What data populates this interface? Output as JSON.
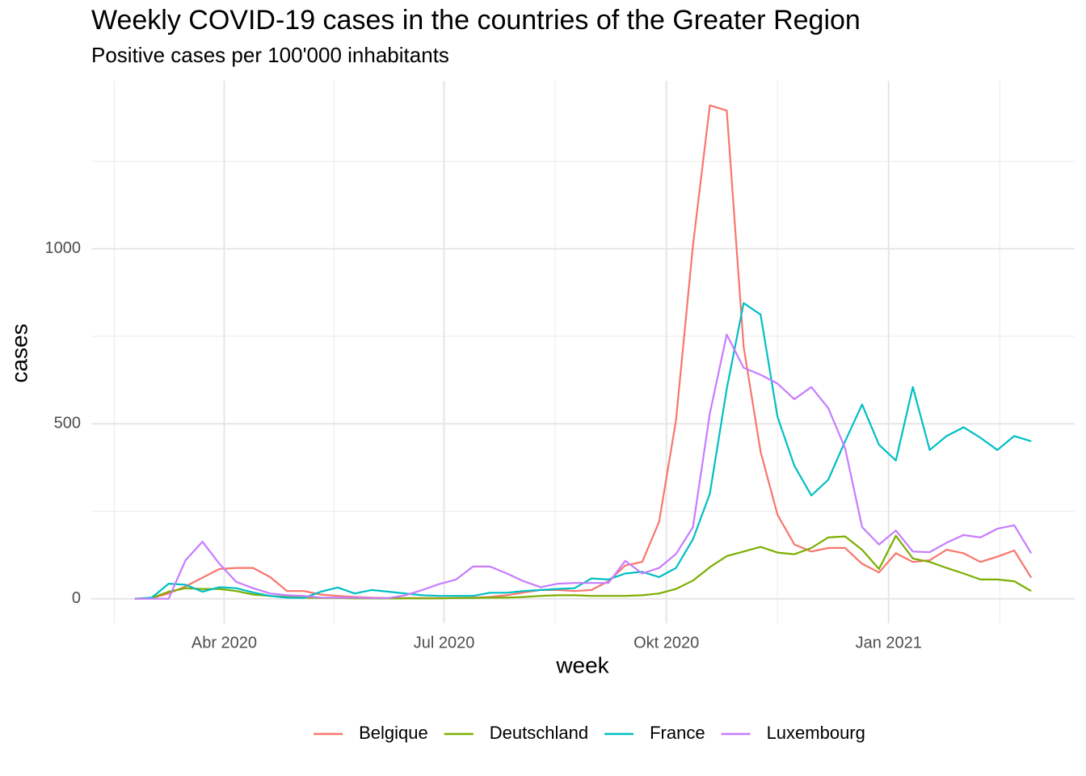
{
  "chart_data": {
    "type": "line",
    "title": "Weekly COVID-19 cases in the countries of the Greater Region",
    "subtitle": "Positive cases per 100'000 inhabitants",
    "x_label": "week",
    "y_label": "cases",
    "x": [
      "2020-02-24",
      "2020-03-02",
      "2020-03-09",
      "2020-03-16",
      "2020-03-23",
      "2020-03-30",
      "2020-04-06",
      "2020-04-13",
      "2020-04-20",
      "2020-04-27",
      "2020-05-04",
      "2020-05-11",
      "2020-05-18",
      "2020-05-25",
      "2020-06-01",
      "2020-06-08",
      "2020-06-15",
      "2020-06-22",
      "2020-06-29",
      "2020-07-06",
      "2020-07-13",
      "2020-07-20",
      "2020-07-27",
      "2020-08-03",
      "2020-08-10",
      "2020-08-17",
      "2020-08-24",
      "2020-08-31",
      "2020-09-07",
      "2020-09-14",
      "2020-09-21",
      "2020-09-28",
      "2020-10-05",
      "2020-10-12",
      "2020-10-19",
      "2020-10-26",
      "2020-11-02",
      "2020-11-09",
      "2020-11-16",
      "2020-11-23",
      "2020-11-30",
      "2020-12-07",
      "2020-12-14",
      "2020-12-21",
      "2020-12-28",
      "2021-01-04",
      "2021-01-11",
      "2021-01-18",
      "2021-01-25",
      "2021-02-01",
      "2021-02-08",
      "2021-02-15",
      "2021-02-22",
      "2021-03-01"
    ],
    "series": [
      {
        "name": "Belgique",
        "color": "#F8766D",
        "values": [
          0,
          2,
          15,
          35,
          60,
          85,
          88,
          88,
          62,
          22,
          22,
          12,
          8,
          5,
          3,
          2,
          2,
          2,
          2,
          2,
          3,
          5,
          10,
          18,
          25,
          25,
          22,
          25,
          50,
          95,
          105,
          220,
          510,
          1010,
          1410,
          1395,
          720,
          420,
          240,
          155,
          135,
          145,
          145,
          100,
          75,
          130,
          105,
          110,
          140,
          130,
          105,
          120,
          138,
          60
        ]
      },
      {
        "name": "Deutschland",
        "color": "#7CAE00",
        "values": [
          0,
          2,
          20,
          30,
          28,
          28,
          22,
          12,
          8,
          5,
          3,
          2,
          2,
          1,
          1,
          1,
          1,
          1,
          1,
          2,
          2,
          3,
          3,
          5,
          8,
          10,
          10,
          8,
          8,
          8,
          10,
          15,
          28,
          52,
          90,
          122,
          135,
          148,
          132,
          127,
          145,
          175,
          178,
          140,
          85,
          180,
          115,
          105,
          88,
          72,
          55,
          55,
          50,
          22
        ]
      },
      {
        "name": "France",
        "color": "#00BFC4",
        "values": [
          0,
          3,
          43,
          40,
          20,
          33,
          30,
          18,
          8,
          3,
          2,
          20,
          32,
          15,
          25,
          20,
          15,
          10,
          8,
          8,
          8,
          17,
          17,
          22,
          25,
          28,
          30,
          58,
          55,
          72,
          77,
          62,
          88,
          170,
          300,
          600,
          845,
          812,
          520,
          380,
          295,
          340,
          450,
          555,
          440,
          395,
          605,
          425,
          465,
          490,
          460,
          425,
          465,
          450
        ]
      },
      {
        "name": "Luxembourg",
        "color": "#C77CFF",
        "values": [
          0,
          0,
          0,
          110,
          163,
          100,
          48,
          30,
          15,
          10,
          8,
          3,
          3,
          3,
          2,
          2,
          10,
          25,
          42,
          55,
          92,
          92,
          72,
          50,
          33,
          43,
          45,
          45,
          45,
          108,
          72,
          88,
          128,
          205,
          530,
          755,
          660,
          640,
          615,
          570,
          605,
          545,
          430,
          205,
          155,
          195,
          135,
          133,
          160,
          182,
          175,
          200,
          210,
          130
        ]
      }
    ],
    "xlim": [
      "2020-02-06",
      "2021-03-19"
    ],
    "xticks": [
      {
        "value": "2020-04-01",
        "label": "Abr 2020"
      },
      {
        "value": "2020-07-01",
        "label": "Jul 2020"
      },
      {
        "value": "2020-10-01",
        "label": "Okt 2020"
      },
      {
        "value": "2021-01-01",
        "label": "Jan 2021"
      }
    ],
    "ylim": [
      -70,
      1480
    ],
    "yticks": [
      0,
      500,
      1000
    ],
    "grid": true,
    "legend": "bottom"
  }
}
